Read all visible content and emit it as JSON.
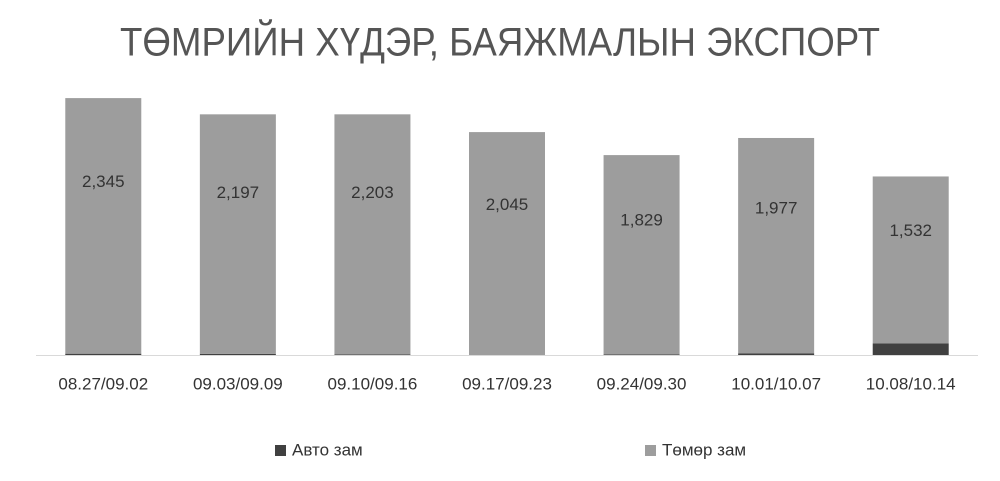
{
  "chart_data": {
    "type": "stacked-bar",
    "title": "ТӨМРИЙН ХҮДЭР, БАЯЖМАЛЫН ЭКСПОРТ",
    "categories": [
      "08.27/09.02",
      "09.03/09.09",
      "09.10/09.16",
      "09.17/09.23",
      "09.24/09.30",
      "10.01/10.07",
      "10.08/10.14"
    ],
    "series": [
      {
        "name": "Авто зам",
        "color": "#404040",
        "values": [
          12,
          11,
          5,
          0,
          5,
          14,
          106
        ]
      },
      {
        "name": "Төмөр зам",
        "color": "#9d9d9d",
        "values": [
          2345,
          2197,
          2203,
          2045,
          1829,
          1977,
          1532
        ],
        "value_labels": [
          "2,345",
          "2,197",
          "2,203",
          "2,045",
          "1,829",
          "1,977",
          "1,532"
        ]
      }
    ],
    "legend": "bottom"
  }
}
